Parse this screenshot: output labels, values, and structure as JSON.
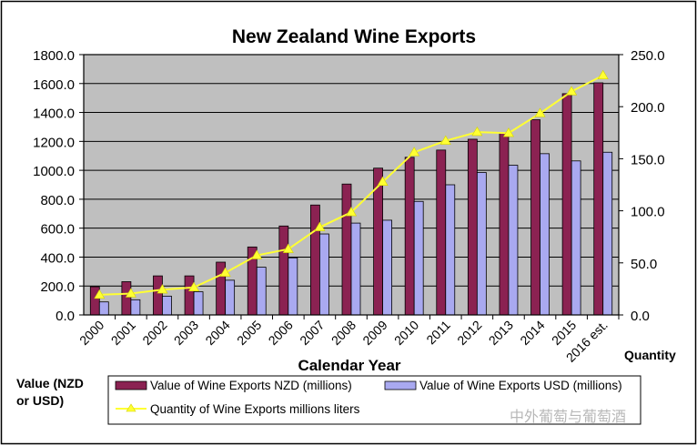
{
  "chart_data": {
    "type": "bar",
    "title": "New Zealand Wine Exports",
    "xlabel": "Calendar Year",
    "ylabel": "Value (NZD or USD)",
    "y2label": "Quantity",
    "categories": [
      "2000",
      "2001",
      "2002",
      "2003",
      "2004",
      "2005",
      "2006",
      "2007",
      "2008",
      "2009",
      "2010",
      "2011",
      "2012",
      "2013",
      "2014",
      "2015",
      "2016 est."
    ],
    "ylim": [
      0,
      1800
    ],
    "y2lim": [
      0,
      250
    ],
    "yticks": [
      "0.0",
      "200.0",
      "400.0",
      "600.0",
      "800.0",
      "1000.0",
      "1200.0",
      "1400.0",
      "1600.0",
      "1800.0"
    ],
    "y2ticks": [
      "0.0",
      "50.0",
      "100.0",
      "150.0",
      "200.0",
      "250.0"
    ],
    "grid": "horizontal",
    "legend": "bottom",
    "series": [
      {
        "name": "Value of Wine Exports NZD (millions)",
        "type": "bar",
        "axis": "left",
        "color": "#8b2252",
        "values": [
          195,
          230,
          270,
          270,
          365,
          470,
          615,
          760,
          905,
          1015,
          1090,
          1140,
          1215,
          1255,
          1350,
          1530,
          1605
        ]
      },
      {
        "name": "Value of Wine Exports USD (millions)",
        "type": "bar",
        "axis": "left",
        "color": "#a9a9f0",
        "values": [
          90,
          105,
          130,
          160,
          240,
          330,
          395,
          560,
          635,
          655,
          785,
          900,
          985,
          1035,
          1115,
          1065,
          1125
        ]
      },
      {
        "name": "Quantity of Wine Exports millions liters",
        "type": "line",
        "axis": "right",
        "color": "#ffff33",
        "values": [
          19.3,
          20.5,
          24.3,
          26.4,
          40.5,
          57.2,
          63.2,
          84.2,
          98.6,
          127.8,
          156.2,
          167.2,
          175.6,
          174.6,
          193.6,
          214.6,
          230
        ]
      }
    ]
  },
  "watermark": "中外葡萄与葡萄酒"
}
